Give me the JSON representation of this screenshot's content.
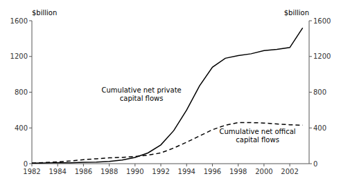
{
  "chart_data": {
    "type": "line",
    "x": [
      1982,
      1983,
      1984,
      1985,
      1986,
      1987,
      1988,
      1989,
      1990,
      1991,
      1992,
      1993,
      1994,
      1995,
      1996,
      1997,
      1998,
      1999,
      2000,
      2001,
      2002,
      2003
    ],
    "series": [
      {
        "color": "#000000",
        "line_style": "solid",
        "values": [
          5,
          8,
          12,
          10,
          15,
          18,
          25,
          40,
          70,
          120,
          210,
          370,
          600,
          870,
          1080,
          1180,
          1210,
          1230,
          1265,
          1280,
          1300,
          1520
        ]
      },
      {
        "color": "#000000",
        "line_style": "dashed",
        "values": [
          5,
          12,
          20,
          30,
          45,
          55,
          65,
          70,
          80,
          95,
          120,
          175,
          240,
          310,
          380,
          430,
          460,
          460,
          455,
          445,
          435,
          430
        ]
      }
    ],
    "xlim": [
      1982,
      2003.5
    ],
    "xticks": [
      1982,
      1984,
      1986,
      1988,
      1990,
      1992,
      1994,
      1996,
      1998,
      2000,
      2002
    ],
    "ylim": [
      0,
      1600
    ],
    "yticks": [
      0,
      400,
      800,
      1200,
      1600
    ],
    "y2lim": [
      0,
      1600
    ],
    "y2ticks": [
      0,
      400,
      800,
      1200,
      1600
    ],
    "ylabel": "$billion",
    "y2label": "$billion",
    "grid": false,
    "color": "#000000",
    "annotations": [
      {
        "text": "Cumulative net private\ncapital flows",
        "x": 1990.5,
        "y": 780
      },
      {
        "text": "Cumulative net offical\ncapital flows",
        "x": 1999.5,
        "y": 310
      }
    ]
  }
}
